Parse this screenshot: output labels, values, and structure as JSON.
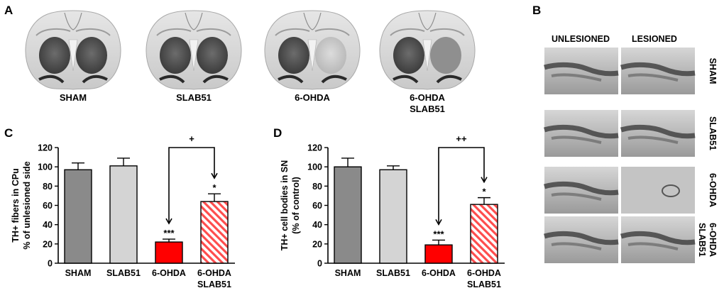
{
  "panel_labels": {
    "a": "A",
    "b": "B",
    "c": "C",
    "d": "D"
  },
  "panel_a": {
    "labels": [
      "SHAM",
      "SLAB51",
      "6-OHDA",
      "6-OHDA",
      "SLAB51"
    ]
  },
  "panel_b": {
    "col_headers": [
      "UNLESIONED",
      "LESIONED"
    ],
    "row_labels": [
      "SHAM",
      "SLAB51",
      "6-OHDA",
      "6-OHDA",
      "SLAB51"
    ]
  },
  "colors": {
    "sham": "#8a8a8a",
    "slab51": "#d4d4d4",
    "ohda": "#ff0000",
    "ohda_slab51_stripe": "#ff4d4d"
  },
  "chart_data": [
    {
      "type": "bar",
      "panel": "C",
      "categories": [
        "SHAM",
        "SLAB51",
        "6-OHDA",
        "6-OHDA\nSLAB51"
      ],
      "category_lines": [
        [
          "SHAM"
        ],
        [
          "SLAB51"
        ],
        [
          "6-OHDA"
        ],
        [
          "6-OHDA",
          "SLAB51"
        ]
      ],
      "values": [
        97,
        101,
        22,
        64
      ],
      "errors": [
        7,
        8,
        3,
        8
      ],
      "ylabel": [
        "TH+ fibers in CPu",
        "% of unlesioned side"
      ],
      "ylim": [
        0,
        120
      ],
      "yticks": [
        "0",
        "20",
        "40",
        "60",
        "80",
        "100",
        "120"
      ],
      "significance": [
        "",
        "",
        "***",
        "*"
      ],
      "bracket_label": "+",
      "bracket_between": [
        2,
        3
      ]
    },
    {
      "type": "bar",
      "panel": "D",
      "categories": [
        "SHAM",
        "SLAB51",
        "6-OHDA",
        "6-OHDA\nSLAB51"
      ],
      "category_lines": [
        [
          "SHAM"
        ],
        [
          "SLAB51"
        ],
        [
          "6-OHDA"
        ],
        [
          "6-OHDA",
          "SLAB51"
        ]
      ],
      "values": [
        100,
        97,
        19,
        61
      ],
      "errors": [
        9,
        4,
        5,
        7
      ],
      "ylabel": [
        "TH+ cell bodies in SN",
        "(% of control)"
      ],
      "ylim": [
        0,
        120
      ],
      "yticks": [
        "0",
        "20",
        "40",
        "60",
        "80",
        "100",
        "120"
      ],
      "significance": [
        "",
        "",
        "***",
        "*"
      ],
      "bracket_label": "++",
      "bracket_between": [
        2,
        3
      ]
    }
  ]
}
